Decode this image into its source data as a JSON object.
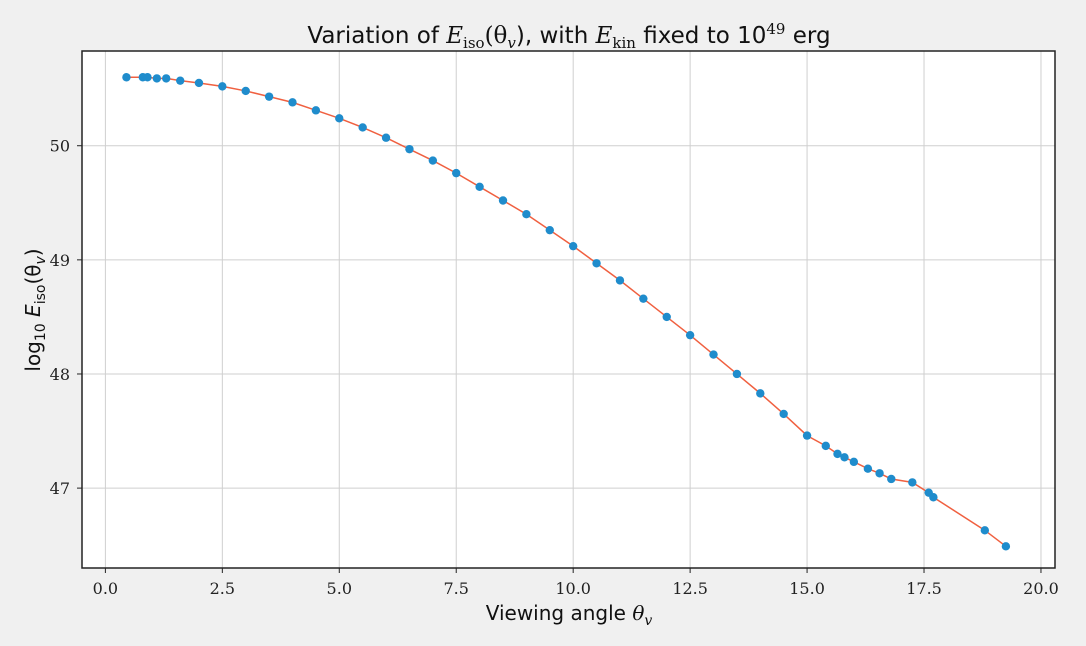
{
  "chart_data": {
    "type": "scatter",
    "title": "Variation of E_iso(θ_v), with E_kin fixed to 10^49 erg",
    "title_parts": {
      "prefix": "Variation of ",
      "eiso_sym": "E",
      "eiso_sub": "iso",
      "eiso_arg": "(θ",
      "eiso_arg_sub": "v",
      "eiso_close": "), with ",
      "ekin_sym": "E",
      "ekin_sub": "kin",
      "middle": " fixed to 10",
      "power": "49",
      "suffix": " erg"
    },
    "xlabel": "Viewing angle θv",
    "xlabel_parts": {
      "text": "Viewing angle ",
      "sym": "θ",
      "sub": "v"
    },
    "ylabel": "log10 Eiso(θv)",
    "ylabel_parts": {
      "log": "log",
      "log_sub": "10",
      "sym": " E",
      "sym_sub": "iso",
      "arg": "(θ",
      "arg_sub": "v",
      "close": ")"
    },
    "xlim": [
      -0.5,
      20.3
    ],
    "ylim": [
      46.3,
      50.83
    ],
    "x_ticks": [
      0.0,
      2.5,
      5.0,
      7.5,
      10.0,
      12.5,
      15.0,
      17.5,
      20.0
    ],
    "x_tick_labels": [
      "0.0",
      "2.5",
      "5.0",
      "7.5",
      "10.0",
      "12.5",
      "15.0",
      "17.5",
      "20.0"
    ],
    "y_ticks": [
      47,
      48,
      49,
      50
    ],
    "y_tick_labels": [
      "47",
      "48",
      "49",
      "50"
    ],
    "grid": true,
    "series": [
      {
        "name": "",
        "marker_color": "#1f8ccc",
        "line_color": "#f06040",
        "x": [
          0.45,
          0.8,
          0.9,
          1.1,
          1.3,
          1.6,
          2.0,
          2.5,
          3.0,
          3.5,
          4.0,
          4.5,
          5.0,
          5.5,
          6.0,
          6.5,
          7.0,
          7.5,
          8.0,
          8.5,
          9.0,
          9.5,
          10.0,
          10.5,
          11.0,
          11.5,
          12.0,
          12.5,
          13.0,
          13.5,
          14.0,
          14.5,
          15.0,
          15.4,
          15.65,
          15.8,
          16.0,
          16.3,
          16.55,
          16.8,
          17.25,
          17.6,
          17.7,
          18.8,
          19.25
        ],
        "y": [
          50.6,
          50.6,
          50.6,
          50.59,
          50.59,
          50.57,
          50.55,
          50.52,
          50.48,
          50.43,
          50.38,
          50.31,
          50.24,
          50.16,
          50.07,
          49.97,
          49.87,
          49.76,
          49.64,
          49.52,
          49.4,
          49.26,
          49.12,
          48.97,
          48.82,
          48.66,
          48.5,
          48.34,
          48.17,
          48.0,
          47.83,
          47.65,
          47.46,
          47.37,
          47.3,
          47.27,
          47.23,
          47.17,
          47.13,
          47.08,
          47.05,
          46.96,
          46.92,
          46.63,
          46.49
        ]
      }
    ]
  }
}
